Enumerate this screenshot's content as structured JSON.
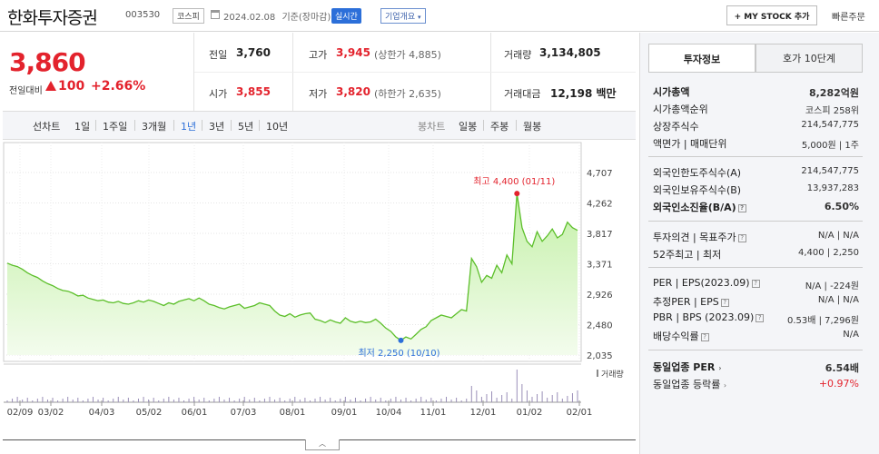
{
  "header": {
    "name": "한화투자증권",
    "code": "003530",
    "market": "코스피",
    "date": "2024.02.08",
    "basis": "기준(장마감)",
    "live_label": "실시간",
    "corp_label": "기업개요",
    "mystock_label": "+ MY STOCK 추가",
    "quick_order": "빠른주문"
  },
  "price": {
    "current": "3,860",
    "change_label": "전일대비",
    "change_value": "100",
    "change_pct": "+2.66%"
  },
  "summary": {
    "prev_close_label": "전일",
    "prev_close": "3,760",
    "high_label": "고가",
    "high": "3,945",
    "upper_limit": "(상한가 4,885)",
    "volume_label": "거래량",
    "volume": "3,134,805",
    "open_label": "시가",
    "open": "3,855",
    "low_label": "저가",
    "low": "3,820",
    "lower_limit": "(하한가 2,635)",
    "amount_label": "거래대금",
    "amount": "12,198",
    "amount_unit": "백만"
  },
  "period_bar": {
    "line_label": "선차트",
    "periods": [
      "1일",
      "1주일",
      "3개월",
      "1년",
      "3년",
      "5년",
      "10년"
    ],
    "active": "1년",
    "candle_label": "봉차트",
    "candles": [
      "일봉",
      "주봉",
      "월봉"
    ]
  },
  "chart_data": {
    "type": "area",
    "y_ticks": [
      "4,707",
      "4,262",
      "3,817",
      "3,371",
      "2,926",
      "2,480",
      "2,035"
    ],
    "ylim": [
      2035,
      4707
    ],
    "x_ticks": [
      "02/09",
      "03/02",
      "04/03",
      "05/02",
      "06/01",
      "07/03",
      "08/01",
      "09/01",
      "10/04",
      "11/01",
      "12/01",
      "01/02",
      "02/01"
    ],
    "max_annotation": "최고 4,400 (01/11)",
    "min_annotation": "최저 2,250 (10/10)",
    "volume_label": "거래량",
    "colors": {
      "line": "#5cbf2a",
      "fill": "#d6f5c3",
      "max": "#e3232d",
      "min": "#2c6fd9"
    },
    "values": [
      3380,
      3350,
      3330,
      3290,
      3240,
      3200,
      3170,
      3120,
      3080,
      3050,
      3010,
      2980,
      2970,
      2940,
      2900,
      2910,
      2870,
      2850,
      2830,
      2840,
      2810,
      2800,
      2820,
      2790,
      2780,
      2800,
      2830,
      2810,
      2840,
      2820,
      2790,
      2760,
      2800,
      2780,
      2820,
      2840,
      2860,
      2830,
      2870,
      2830,
      2780,
      2760,
      2730,
      2710,
      2740,
      2760,
      2780,
      2720,
      2740,
      2760,
      2800,
      2780,
      2760,
      2680,
      2620,
      2600,
      2640,
      2590,
      2620,
      2640,
      2650,
      2560,
      2540,
      2510,
      2550,
      2520,
      2500,
      2580,
      2530,
      2510,
      2530,
      2510,
      2520,
      2560,
      2500,
      2430,
      2380,
      2300,
      2250,
      2300,
      2270,
      2340,
      2410,
      2450,
      2540,
      2580,
      2620,
      2600,
      2580,
      2640,
      2700,
      2680,
      3450,
      3330,
      3100,
      3200,
      3160,
      3350,
      3240,
      3500,
      3370,
      4400,
      3900,
      3700,
      3620,
      3840,
      3700,
      3780,
      3880,
      3750,
      3800,
      3980,
      3900,
      3860
    ]
  },
  "right_panel": {
    "tab_active": "투자정보",
    "tab_other": "호가 10단계",
    "rows1": [
      {
        "label": "시가총액",
        "value": "8,282억원",
        "bold": true
      },
      {
        "label": "시가총액순위",
        "value": "코스피 258위"
      },
      {
        "label": "상장주식수",
        "value": "214,547,775"
      },
      {
        "label": "액면가 | 매매단위",
        "value": "5,000원 | 1주"
      }
    ],
    "rows2": [
      {
        "label": "외국인한도주식수(A)",
        "value": "214,547,775"
      },
      {
        "label": "외국인보유주식수(B)",
        "value": "13,937,283"
      },
      {
        "label": "외국인소진율(B/A)",
        "value": "6.50%",
        "bold": true
      }
    ],
    "rows3": [
      {
        "label": "투자의견 | 목표주가",
        "value": "N/A  |  N/A"
      },
      {
        "label": "52주최고 | 최저",
        "value": "4,400  |  2,250"
      }
    ],
    "rows4": [
      {
        "label": "PER | EPS(2023.09)",
        "value": "N/A  |  -224원"
      },
      {
        "label": "추정PER | EPS",
        "value": "N/A  |  N/A"
      },
      {
        "label": "PBR | BPS (2023.09)",
        "value": "0.53배  |  7,296원"
      },
      {
        "label": "배당수익률",
        "value": "N/A"
      }
    ],
    "rows5": [
      {
        "label": "동일업종 PER",
        "value": "6.54배",
        "bold": true
      },
      {
        "label": "동일업종 등락률",
        "value": "+0.97%",
        "red": true
      }
    ]
  }
}
